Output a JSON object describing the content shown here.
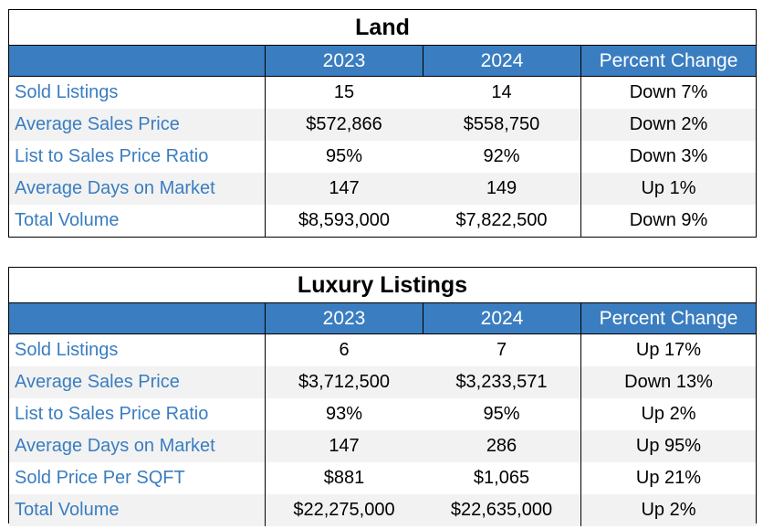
{
  "land": {
    "title": "Land",
    "headers": [
      "",
      "2023",
      "2024",
      "Percent Change"
    ],
    "rows": [
      {
        "label": "Sold Listings",
        "y2023": "15",
        "y2024": "14",
        "change": "Down 7%"
      },
      {
        "label": "Average Sales Price",
        "y2023": "$572,866",
        "y2024": "$558,750",
        "change": "Down 2%"
      },
      {
        "label": "List to Sales Price Ratio",
        "y2023": "95%",
        "y2024": "92%",
        "change": "Down 3%"
      },
      {
        "label": "Average Days on Market",
        "y2023": "147",
        "y2024": "149",
        "change": "Up 1%"
      },
      {
        "label": "Total Volume",
        "y2023": "$8,593,000",
        "y2024": "$7,822,500",
        "change": "Down 9%"
      }
    ]
  },
  "luxury": {
    "title": "Luxury Listings",
    "headers": [
      "",
      "2023",
      "2024",
      "Percent Change"
    ],
    "rows": [
      {
        "label": "Sold Listings",
        "y2023": "6",
        "y2024": "7",
        "change": "Up 17%"
      },
      {
        "label": "Average Sales Price",
        "y2023": "$3,712,500",
        "y2024": "$3,233,571",
        "change": "Down 13%"
      },
      {
        "label": "List to Sales Price Ratio",
        "y2023": "93%",
        "y2024": "95%",
        "change": "Up 2%"
      },
      {
        "label": "Average Days on Market",
        "y2023": "147",
        "y2024": "286",
        "change": "Up 95%"
      },
      {
        "label": "Sold Price Per SQFT",
        "y2023": "$881",
        "y2024": "$1,065",
        "change": "Up 21%"
      },
      {
        "label": "Total Volume",
        "y2023": "$22,275,000",
        "y2024": "$22,635,000",
        "change": "Up 2%"
      }
    ]
  },
  "colors": {
    "header_bg": "#3a7dc0",
    "label_text": "#3a7dc0",
    "alt_row": "#f2f2f2"
  }
}
